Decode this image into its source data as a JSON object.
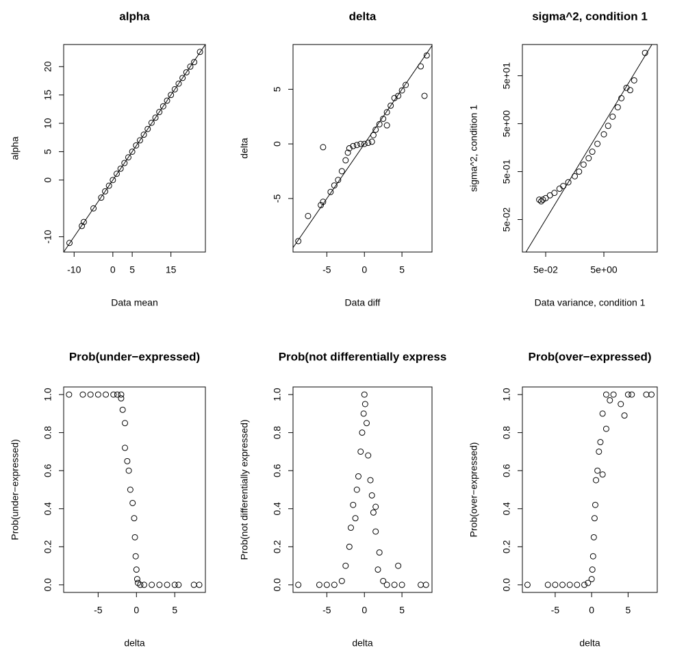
{
  "chart_data": [
    {
      "type": "scatter",
      "title": "alpha",
      "x_label": "Data mean",
      "y_label": "alpha",
      "diagonal": true,
      "x": [
        -11.2,
        -8,
        -7.5,
        -5,
        -3,
        -2,
        -1,
        0,
        1,
        2,
        3,
        4,
        5,
        6,
        7,
        8,
        9,
        10,
        11,
        12,
        13,
        14,
        15,
        16,
        17,
        18,
        19,
        20,
        21,
        22.5
      ],
      "values": [
        -11.1,
        -8.1,
        -7.4,
        -5,
        -3.1,
        -2,
        -1,
        0,
        1.1,
        2,
        3,
        4,
        5,
        6.1,
        7,
        8,
        9,
        10.1,
        11,
        12,
        13,
        14,
        15,
        16,
        17,
        18,
        19,
        20,
        20.8,
        22.6
      ],
      "xlim": [
        -12.7,
        23.9
      ],
      "ylim": [
        -12.7,
        23.9
      ],
      "xticks": [
        -10,
        0,
        5,
        15
      ],
      "yticks": [
        -10,
        0,
        5,
        10,
        15,
        20
      ]
    },
    {
      "type": "scatter",
      "title": "delta",
      "x_label": "Data diff",
      "y_label": "delta",
      "diagonal": true,
      "x": [
        -8.8,
        -7.5,
        -5.8,
        -5.5,
        -5.5,
        -4.5,
        -4,
        -3.5,
        -3,
        -2.5,
        -2.2,
        -2,
        -1.5,
        -1,
        -0.5,
        0,
        0.5,
        1,
        1.2,
        1.5,
        2,
        2.5,
        3,
        3,
        3.5,
        4,
        4.5,
        5,
        5.5,
        7.5,
        8,
        8.3
      ],
      "values": [
        -8.9,
        -6.6,
        -5.6,
        -5.3,
        -0.3,
        -4.4,
        -3.8,
        -3.3,
        -2.5,
        -1.5,
        -0.8,
        -0.4,
        -0.2,
        -0.1,
        0,
        0,
        0.1,
        0.2,
        0.8,
        1.3,
        1.8,
        2.3,
        2.9,
        1.7,
        3.5,
        4.2,
        4.4,
        4.9,
        5.4,
        7.1,
        4.4,
        8.1
      ],
      "xlim": [
        -9.5,
        9.0
      ],
      "ylim": [
        -9.9,
        9.1
      ],
      "xticks": [
        -5,
        0,
        5
      ],
      "yticks": [
        -5,
        0,
        5
      ]
    },
    {
      "type": "scatter",
      "title": "sigma^2, condition 1",
      "x_label": "Data variance, condition 1",
      "y_label": "sigma^2, condition 1",
      "diagonal": true,
      "log": "xy",
      "x": [
        0.03,
        0.035,
        0.04,
        0.05,
        0.07,
        0.1,
        0.15,
        0.2,
        0.3,
        0.5,
        0.7,
        1,
        1.5,
        2,
        3,
        5,
        7,
        10,
        15,
        20,
        30,
        40,
        55,
        130
      ],
      "values": [
        0.13,
        0.12,
        0.13,
        0.14,
        0.16,
        0.18,
        0.22,
        0.25,
        0.3,
        0.4,
        0.5,
        0.7,
        0.95,
        1.3,
        1.9,
        3,
        4.5,
        7,
        11,
        17,
        28,
        25,
        40,
        150
      ],
      "xlim": [
        0.0079,
        342
      ],
      "ylim": [
        0.0105,
        224
      ],
      "xticks": [
        {
          "value": 0.05,
          "label": "5e-02"
        },
        {
          "value": 5,
          "label": "5e+00"
        }
      ],
      "yticks": [
        {
          "value": 0.05,
          "label": "5e-02"
        },
        {
          "value": 0.5,
          "label": "5e-01"
        },
        {
          "value": 5,
          "label": "5e+00"
        },
        {
          "value": 50,
          "label": "5e+01"
        }
      ]
    },
    {
      "type": "scatter",
      "title": "Prob(under−expressed)",
      "x_label": "delta",
      "y_label": "Prob(under−expressed)",
      "x": [
        -8.8,
        -7,
        -6,
        -5,
        -4,
        -3,
        -2.5,
        -2,
        -2,
        -1.8,
        -1.5,
        -1.5,
        -1.2,
        -1,
        -0.8,
        -0.5,
        -0.3,
        -0.2,
        -0.1,
        0,
        0.1,
        0.2,
        0.5,
        1,
        2,
        3,
        4,
        5,
        5.5,
        7.5,
        8.2
      ],
      "values": [
        1,
        1,
        1,
        1,
        1,
        1,
        1,
        1,
        0.98,
        0.92,
        0.85,
        0.72,
        0.65,
        0.6,
        0.5,
        0.43,
        0.35,
        0.25,
        0.15,
        0.08,
        0.03,
        0.01,
        0,
        0,
        0,
        0,
        0,
        0,
        0,
        0,
        0
      ],
      "xlim": [
        -9.5,
        9.0
      ],
      "ylim": [
        -0.04,
        1.04
      ],
      "xticks": [
        -5,
        0,
        5
      ],
      "yticks": [
        {
          "value": 0,
          "label": "0.0"
        },
        {
          "value": 0.2,
          "label": "0.2"
        },
        {
          "value": 0.4,
          "label": "0.4"
        },
        {
          "value": 0.6,
          "label": "0.6"
        },
        {
          "value": 0.8,
          "label": "0.8"
        },
        {
          "value": 1,
          "label": "1.0"
        }
      ]
    },
    {
      "type": "scatter",
      "title": "Prob(not differentially express",
      "x_label": "delta",
      "y_label": "Prob(not differentially expressed)",
      "x": [
        -8.8,
        -6,
        -5,
        -4,
        -3,
        -2.5,
        -2,
        -1.8,
        -1.5,
        -1.2,
        -1,
        -0.8,
        -0.5,
        -0.3,
        -0.1,
        0,
        0.1,
        0.3,
        0.5,
        0.8,
        1,
        1.2,
        1.5,
        1.5,
        1.8,
        2,
        2.5,
        3,
        4,
        4.5,
        5,
        7.5,
        8.2
      ],
      "values": [
        0,
        0,
        0,
        0,
        0.02,
        0.1,
        0.2,
        0.3,
        0.42,
        0.35,
        0.5,
        0.57,
        0.7,
        0.8,
        0.9,
        1,
        0.95,
        0.85,
        0.68,
        0.55,
        0.47,
        0.38,
        0.28,
        0.41,
        0.08,
        0.17,
        0.02,
        0,
        0,
        0.1,
        0,
        0,
        0
      ],
      "xlim": [
        -9.5,
        9.0
      ],
      "ylim": [
        -0.04,
        1.04
      ],
      "xticks": [
        -5,
        0,
        5
      ],
      "yticks": [
        {
          "value": 0,
          "label": "0.0"
        },
        {
          "value": 0.2,
          "label": "0.2"
        },
        {
          "value": 0.4,
          "label": "0.4"
        },
        {
          "value": 0.6,
          "label": "0.6"
        },
        {
          "value": 0.8,
          "label": "0.8"
        },
        {
          "value": 1,
          "label": "1.0"
        }
      ]
    },
    {
      "type": "scatter",
      "title": "Prob(over−expressed)",
      "x_label": "delta",
      "y_label": "Prob(over−expressed)",
      "x": [
        -8.8,
        -6,
        -5,
        -4,
        -3,
        -2,
        -1,
        -0.5,
        0,
        0.1,
        0.2,
        0.3,
        0.4,
        0.5,
        0.6,
        0.8,
        1,
        1.2,
        1.5,
        1.5,
        2,
        2,
        2.5,
        3,
        4,
        4.5,
        5,
        5.5,
        7.5,
        8.2
      ],
      "values": [
        0,
        0,
        0,
        0,
        0,
        0,
        0,
        0.01,
        0.03,
        0.08,
        0.15,
        0.25,
        0.35,
        0.42,
        0.55,
        0.6,
        0.7,
        0.75,
        0.58,
        0.9,
        0.82,
        1,
        0.97,
        1,
        0.95,
        0.89,
        1,
        1,
        1,
        1
      ],
      "xlim": [
        -9.5,
        9.0
      ],
      "ylim": [
        -0.04,
        1.04
      ],
      "xticks": [
        -5,
        0,
        5
      ],
      "yticks": [
        {
          "value": 0,
          "label": "0.0"
        },
        {
          "value": 0.2,
          "label": "0.2"
        },
        {
          "value": 0.4,
          "label": "0.4"
        },
        {
          "value": 0.6,
          "label": "0.6"
        },
        {
          "value": 0.8,
          "label": "0.8"
        },
        {
          "value": 1,
          "label": "1.0"
        }
      ]
    }
  ]
}
